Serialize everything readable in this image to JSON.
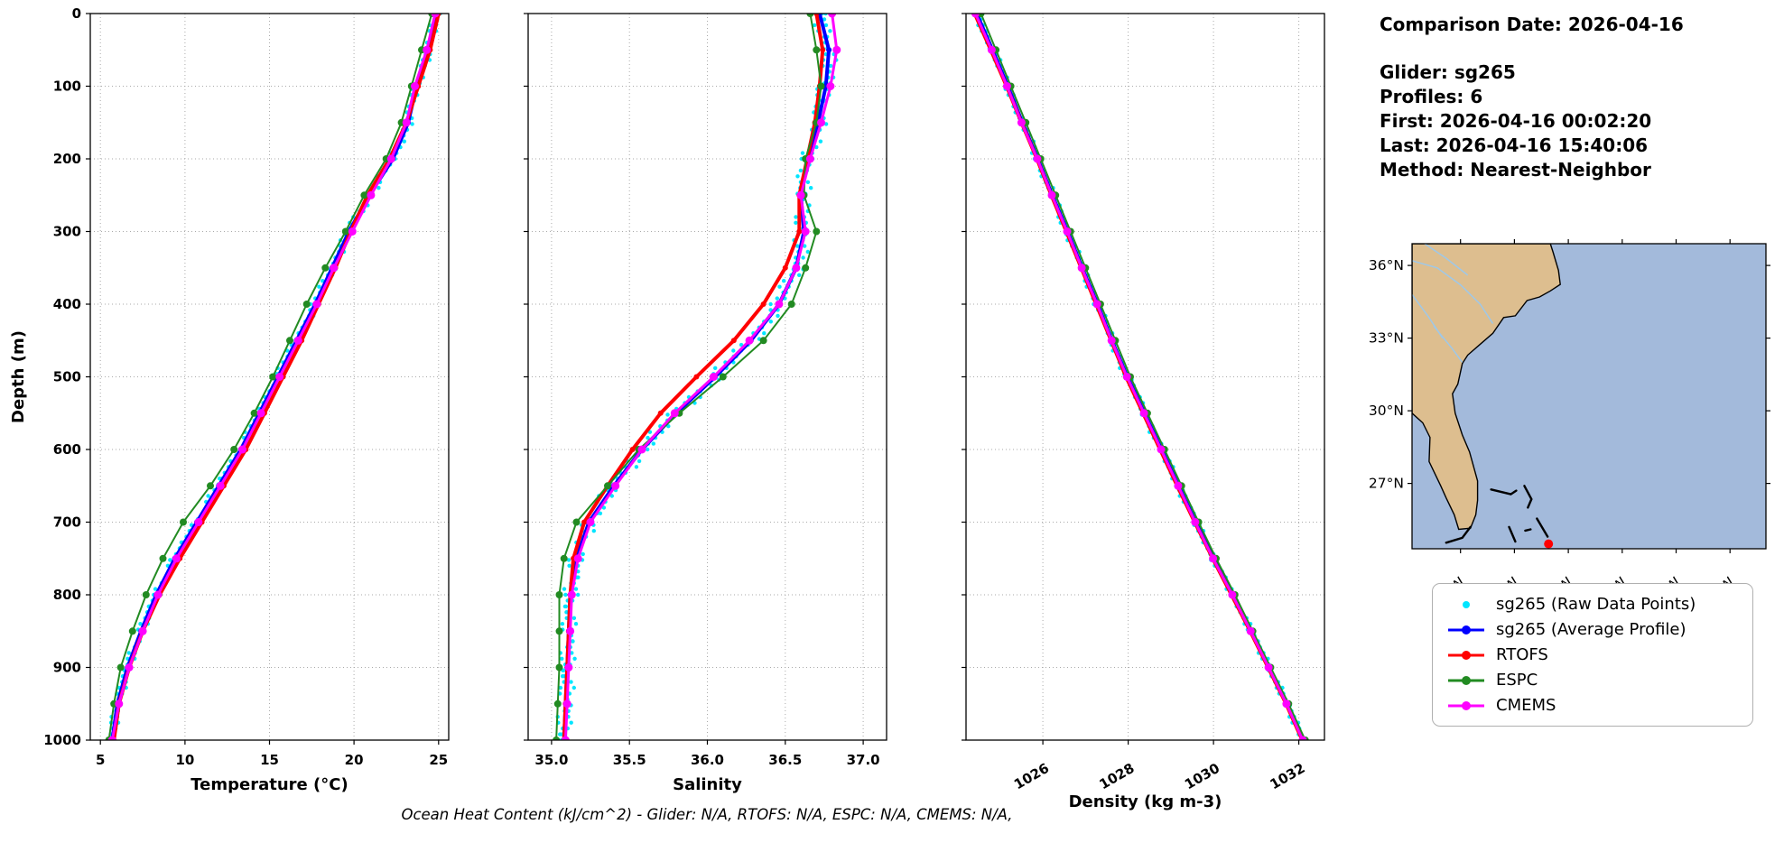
{
  "info_panel": {
    "lines": [
      "Comparison Date: 2026-04-16",
      "",
      "Glider: sg265",
      "Profiles: 6",
      "First: 2026-04-16 00:02:20",
      "Last: 2026-04-16 15:40:06",
      "Method: Nearest-Neighbor"
    ]
  },
  "footer": "Ocean Heat Content (kJ/cm^2) - Glider: N/A,  RTOFS: N/A,  ESPC: N/A,  CMEMS: N/A,",
  "depth_axis": {
    "label": "Depth (m)",
    "lim": [
      0,
      1000
    ],
    "ticks": [
      {
        "v": 0,
        "label": "0"
      },
      {
        "v": 100,
        "label": "100"
      },
      {
        "v": 200,
        "label": "200"
      },
      {
        "v": 300,
        "label": "300"
      },
      {
        "v": 400,
        "label": "400"
      },
      {
        "v": 500,
        "label": "500"
      },
      {
        "v": 600,
        "label": "600"
      },
      {
        "v": 700,
        "label": "700"
      },
      {
        "v": 800,
        "label": "800"
      },
      {
        "v": 900,
        "label": "900"
      },
      {
        "v": 1000,
        "label": "1000"
      }
    ]
  },
  "chart_data": [
    {
      "id": "temperature",
      "type": "line",
      "xlabel": "Temperature (°C)",
      "xlim": [
        4.4,
        25.6
      ],
      "rotate_xticks": false,
      "xticks": [
        {
          "v": 5,
          "label": "5"
        },
        {
          "v": 10,
          "label": "10"
        },
        {
          "v": 15,
          "label": "15"
        },
        {
          "v": 20,
          "label": "20"
        },
        {
          "v": 25,
          "label": "25"
        }
      ],
      "ylim": [
        0,
        1000
      ],
      "depths": [
        0,
        50,
        100,
        150,
        200,
        250,
        300,
        350,
        400,
        450,
        500,
        550,
        600,
        650,
        700,
        750,
        800,
        850,
        900,
        950,
        1000
      ],
      "raw": {
        "label": "sg265 (Raw Data Points)",
        "color": "#00E5FF",
        "amplitude": 0.28
      },
      "series": [
        {
          "id": "sg265-average",
          "name": "sg265 (Average Profile)",
          "color": "#0000FF",
          "width": 4,
          "marker": 3,
          "values": [
            24.9,
            24.4,
            23.7,
            23.2,
            22.3,
            20.9,
            19.7,
            18.7,
            17.7,
            16.6,
            15.5,
            14.4,
            13.3,
            12.0,
            10.7,
            9.4,
            8.3,
            7.4,
            6.6,
            6.0,
            5.7
          ]
        },
        {
          "id": "rtofs",
          "name": "RTOFS",
          "color": "#FF0000",
          "width": 4,
          "marker": 3,
          "values": [
            25.0,
            24.5,
            23.8,
            23.1,
            22.1,
            20.8,
            19.8,
            18.9,
            17.9,
            16.9,
            15.8,
            14.7,
            13.6,
            12.3,
            11.0,
            9.7,
            8.5,
            7.5,
            6.7,
            6.1,
            5.8
          ]
        },
        {
          "id": "espc",
          "name": "ESPC",
          "color": "#228B22",
          "width": 2,
          "marker": 4,
          "values": [
            24.6,
            24.0,
            23.4,
            22.8,
            21.9,
            20.6,
            19.5,
            18.3,
            17.2,
            16.2,
            15.2,
            14.1,
            12.9,
            11.5,
            9.9,
            8.7,
            7.7,
            6.9,
            6.2,
            5.8,
            5.5
          ]
        },
        {
          "id": "cmems",
          "name": "CMEMS",
          "color": "#FF00FF",
          "width": 3,
          "marker": 4.5,
          "values": [
            24.8,
            24.3,
            23.6,
            23.1,
            22.2,
            21.0,
            19.9,
            18.8,
            17.8,
            16.7,
            15.6,
            14.5,
            13.4,
            12.1,
            10.8,
            9.5,
            8.4,
            7.5,
            6.7,
            6.1,
            5.7
          ]
        }
      ]
    },
    {
      "id": "salinity",
      "type": "line",
      "xlabel": "Salinity",
      "xlim": [
        34.85,
        37.15
      ],
      "rotate_xticks": false,
      "xticks": [
        {
          "v": 35.0,
          "label": "35.0"
        },
        {
          "v": 35.5,
          "label": "35.5"
        },
        {
          "v": 36.0,
          "label": "36.0"
        },
        {
          "v": 36.5,
          "label": "36.5"
        },
        {
          "v": 37.0,
          "label": "37.0"
        }
      ],
      "ylim": [
        0,
        1000
      ],
      "depths": [
        0,
        50,
        100,
        150,
        200,
        250,
        300,
        350,
        400,
        450,
        500,
        550,
        600,
        650,
        700,
        750,
        800,
        850,
        900,
        950,
        1000
      ],
      "raw": {
        "label": "sg265 (Raw Data Points)",
        "color": "#00E5FF",
        "amplitude": 0.055
      },
      "series": [
        {
          "id": "sg265-average",
          "name": "sg265 (Average Profile)",
          "color": "#0000FF",
          "width": 4,
          "marker": 3,
          "values": [
            36.72,
            36.78,
            36.76,
            36.71,
            36.65,
            36.6,
            36.62,
            36.57,
            36.46,
            36.28,
            36.05,
            35.8,
            35.58,
            35.4,
            35.24,
            35.16,
            35.12,
            35.11,
            35.1,
            35.09,
            35.08
          ]
        },
        {
          "id": "rtofs",
          "name": "RTOFS",
          "color": "#FF0000",
          "width": 4,
          "marker": 3,
          "values": [
            36.7,
            36.74,
            36.72,
            36.69,
            36.64,
            36.59,
            36.59,
            36.5,
            36.36,
            36.17,
            35.93,
            35.7,
            35.52,
            35.36,
            35.21,
            35.14,
            35.12,
            35.11,
            35.1,
            35.09,
            35.08
          ]
        },
        {
          "id": "espc",
          "name": "ESPC",
          "color": "#228B22",
          "width": 2,
          "marker": 4,
          "values": [
            36.66,
            36.7,
            36.73,
            36.7,
            36.63,
            36.62,
            36.7,
            36.63,
            36.54,
            36.36,
            36.1,
            35.82,
            35.56,
            35.36,
            35.16,
            35.08,
            35.05,
            35.05,
            35.05,
            35.04,
            35.03
          ]
        },
        {
          "id": "cmems",
          "name": "CMEMS",
          "color": "#FF00FF",
          "width": 3,
          "marker": 4.5,
          "values": [
            36.8,
            36.83,
            36.79,
            36.73,
            36.66,
            36.6,
            36.63,
            36.57,
            36.46,
            36.27,
            36.04,
            35.79,
            35.58,
            35.41,
            35.25,
            35.17,
            35.13,
            35.12,
            35.11,
            35.1,
            35.09
          ]
        }
      ]
    },
    {
      "id": "density",
      "type": "line",
      "xlabel": "Density (kg m-3)",
      "xlim": [
        1024.2,
        1032.6
      ],
      "rotate_xticks": true,
      "xticks": [
        {
          "v": 1026,
          "label": "1026"
        },
        {
          "v": 1028,
          "label": "1028"
        },
        {
          "v": 1030,
          "label": "1030"
        },
        {
          "v": 1032,
          "label": "1032"
        }
      ],
      "ylim": [
        0,
        1000
      ],
      "depths": [
        0,
        50,
        100,
        150,
        200,
        250,
        300,
        350,
        400,
        450,
        500,
        550,
        600,
        650,
        700,
        750,
        800,
        850,
        900,
        950,
        1000
      ],
      "raw": {
        "label": "sg265 (Raw Data Points)",
        "color": "#00E5FF",
        "amplitude": 0.09
      },
      "series": [
        {
          "id": "sg265-average",
          "name": "sg265 (Average Profile)",
          "color": "#0000FF",
          "width": 4,
          "marker": 3,
          "values": [
            1024.45,
            1024.82,
            1025.18,
            1025.52,
            1025.88,
            1026.22,
            1026.58,
            1026.92,
            1027.28,
            1027.62,
            1027.98,
            1028.38,
            1028.78,
            1029.18,
            1029.58,
            1030.0,
            1030.45,
            1030.88,
            1031.3,
            1031.72,
            1032.1
          ]
        },
        {
          "id": "rtofs",
          "name": "RTOFS",
          "color": "#FF0000",
          "width": 4,
          "marker": 3,
          "values": [
            1024.4,
            1024.78,
            1025.15,
            1025.5,
            1025.86,
            1026.2,
            1026.55,
            1026.9,
            1027.25,
            1027.6,
            1027.95,
            1028.35,
            1028.75,
            1029.15,
            1029.56,
            1029.98,
            1030.42,
            1030.86,
            1031.28,
            1031.7,
            1032.08
          ]
        },
        {
          "id": "espc",
          "name": "ESPC",
          "color": "#228B22",
          "width": 2,
          "marker": 4,
          "values": [
            1024.55,
            1024.9,
            1025.25,
            1025.6,
            1025.95,
            1026.3,
            1026.65,
            1027.0,
            1027.35,
            1027.7,
            1028.05,
            1028.45,
            1028.85,
            1029.25,
            1029.65,
            1030.06,
            1030.5,
            1030.92,
            1031.34,
            1031.76,
            1032.15
          ]
        },
        {
          "id": "cmems",
          "name": "CMEMS",
          "color": "#FF00FF",
          "width": 3,
          "marker": 4.5,
          "values": [
            1024.42,
            1024.8,
            1025.16,
            1025.5,
            1025.87,
            1026.21,
            1026.57,
            1026.91,
            1027.27,
            1027.61,
            1027.97,
            1028.37,
            1028.77,
            1029.17,
            1029.57,
            1029.99,
            1030.44,
            1030.87,
            1031.29,
            1031.71,
            1032.09
          ]
        }
      ]
    }
  ],
  "legend": {
    "entries": [
      {
        "label": "sg265 (Raw Data Points)",
        "color": "#00E5FF",
        "type": "scatter"
      },
      {
        "label": "sg265 (Average Profile)",
        "color": "#0000FF",
        "type": "line"
      },
      {
        "label": "RTOFS",
        "color": "#FF0000",
        "type": "line"
      },
      {
        "label": "ESPC",
        "color": "#228B22",
        "type": "line"
      },
      {
        "label": "CMEMS",
        "color": "#FF00FF",
        "type": "line"
      }
    ]
  },
  "map": {
    "extent": {
      "lon_min": -83.7,
      "lon_max": -64.0,
      "lat_min": 24.3,
      "lat_max": 36.9
    },
    "land_color": "#ddbe8f",
    "ocean_color": "#a3badb",
    "river_color": "#9fc8e8",
    "lat_ticks": [
      {
        "v": 36,
        "label": "36°N"
      },
      {
        "v": 33,
        "label": "33°N"
      },
      {
        "v": 30,
        "label": "30°N"
      },
      {
        "v": 27,
        "label": "27°N"
      }
    ],
    "lon_ticks": [
      {
        "v": -81,
        "label": "81°W"
      },
      {
        "v": -78,
        "label": "78°W"
      },
      {
        "v": -75,
        "label": "75°W"
      },
      {
        "v": -72,
        "label": "72°W"
      },
      {
        "v": -69,
        "label": "69°W"
      },
      {
        "v": -66,
        "label": "66°W"
      }
    ],
    "coast": [
      [
        -83.7,
        36.9
      ],
      [
        -76.0,
        36.9
      ],
      [
        -75.85,
        36.55
      ],
      [
        -75.55,
        35.8
      ],
      [
        -75.45,
        35.22
      ],
      [
        -76.0,
        34.95
      ],
      [
        -76.6,
        34.7
      ],
      [
        -77.3,
        34.55
      ],
      [
        -77.95,
        33.92
      ],
      [
        -78.6,
        33.85
      ],
      [
        -79.2,
        33.2
      ],
      [
        -79.9,
        32.75
      ],
      [
        -80.6,
        32.3
      ],
      [
        -80.9,
        31.95
      ],
      [
        -81.15,
        31.1
      ],
      [
        -81.45,
        30.7
      ],
      [
        -81.3,
        29.9
      ],
      [
        -80.9,
        29.0
      ],
      [
        -80.5,
        28.3
      ],
      [
        -80.05,
        27.1
      ],
      [
        -80.05,
        26.3
      ],
      [
        -80.15,
        25.7
      ],
      [
        -80.45,
        25.15
      ],
      [
        -81.1,
        25.1
      ],
      [
        -81.35,
        25.7
      ],
      [
        -81.8,
        26.4
      ],
      [
        -82.1,
        26.9
      ],
      [
        -82.75,
        27.9
      ],
      [
        -82.7,
        28.9
      ],
      [
        -83.1,
        29.5
      ],
      [
        -83.7,
        29.9
      ]
    ],
    "islands": [
      [
        [
          -79.3,
          26.75
        ],
        [
          -78.2,
          26.55
        ],
        [
          -77.9,
          26.7
        ]
      ],
      [
        [
          -77.45,
          26.9
        ],
        [
          -77.05,
          26.35
        ],
        [
          -77.25,
          26.0
        ]
      ],
      [
        [
          -78.3,
          25.2
        ],
        [
          -77.95,
          24.6
        ]
      ],
      [
        [
          -77.4,
          25.05
        ],
        [
          -77.1,
          25.1
        ]
      ],
      [
        [
          -76.75,
          25.55
        ],
        [
          -76.15,
          24.8
        ]
      ],
      [
        [
          -80.45,
          25.2
        ],
        [
          -80.9,
          24.75
        ],
        [
          -81.8,
          24.55
        ]
      ]
    ],
    "rivers": [
      [
        [
          -83.7,
          36.2
        ],
        [
          -82.3,
          35.9
        ],
        [
          -81.0,
          35.2
        ],
        [
          -79.9,
          34.4
        ],
        [
          -79.2,
          33.6
        ]
      ],
      [
        [
          -83.0,
          36.9
        ],
        [
          -81.8,
          36.3
        ],
        [
          -80.6,
          35.6
        ]
      ],
      [
        [
          -82.5,
          33.5
        ],
        [
          -81.5,
          32.6
        ],
        [
          -80.9,
          32.0
        ]
      ],
      [
        [
          -83.7,
          34.8
        ],
        [
          -82.8,
          33.9
        ],
        [
          -82.0,
          33.0
        ]
      ]
    ],
    "glider_marker": {
      "lon": -76.1,
      "lat": 24.5,
      "color": "#FF0000"
    }
  }
}
